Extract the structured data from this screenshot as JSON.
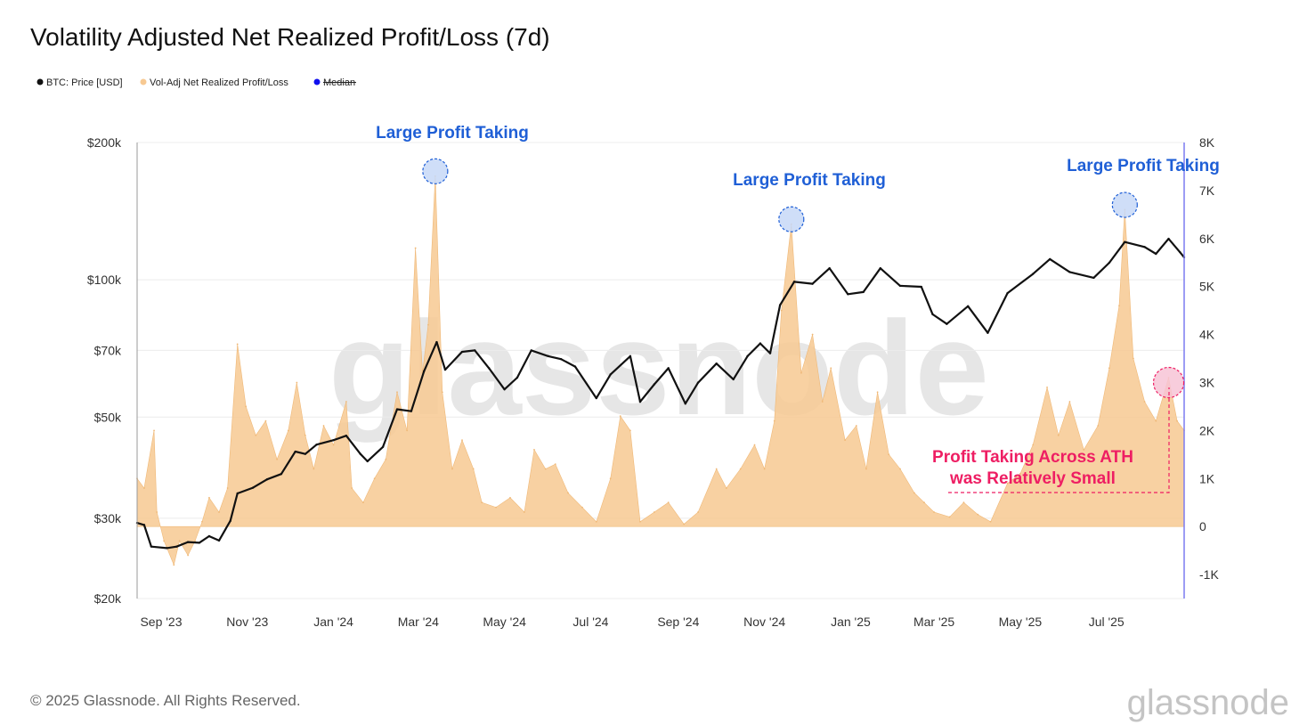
{
  "page": {
    "title": "Volatility Adjusted Net Realized Profit/Loss (7d)",
    "footer": "© 2025 Glassnode. All Rights Reserved.",
    "watermark": "glassnode",
    "footer_logo": "glassnode"
  },
  "legend": [
    {
      "label": "BTC: Price [USD]",
      "color": "#111111",
      "struck": false
    },
    {
      "label": "Vol-Adj Net Realized Profit/Loss",
      "color": "#f7c992",
      "struck": false
    },
    {
      "label": "Median",
      "color": "#1010ee",
      "struck": true
    }
  ],
  "annotations": {
    "peak_1": "Large Profit Taking",
    "peak_2": "Large Profit Taking",
    "peak_3": "Large Profit Taking",
    "ath_line1": "Profit Taking Across ATH",
    "ath_line2": "was Relatively Small"
  },
  "colors": {
    "price": "#111111",
    "pnl_fill": "#f7c992",
    "annot_blue": "#1f5fd6",
    "annot_pink": "#ee1e63",
    "right_axis": "#7b7bf0"
  },
  "chart_data": {
    "type": "area",
    "x_type": "date",
    "x_range": [
      "2023-08-15",
      "2025-08-25"
    ],
    "x_ticks": [
      {
        "date": "2023-09-01",
        "label": "Sep '23"
      },
      {
        "date": "2023-11-01",
        "label": "Nov '23"
      },
      {
        "date": "2024-01-01",
        "label": "Jan '24"
      },
      {
        "date": "2024-03-01",
        "label": "Mar '24"
      },
      {
        "date": "2024-05-01",
        "label": "May '24"
      },
      {
        "date": "2024-07-01",
        "label": "Jul '24"
      },
      {
        "date": "2024-09-01",
        "label": "Sep '24"
      },
      {
        "date": "2024-11-01",
        "label": "Nov '24"
      },
      {
        "date": "2025-01-01",
        "label": "Jan '25"
      },
      {
        "date": "2025-03-01",
        "label": "Mar '25"
      },
      {
        "date": "2025-05-01",
        "label": "May '25"
      },
      {
        "date": "2025-07-01",
        "label": "Jul '25"
      }
    ],
    "y_left": {
      "scale": "log",
      "range": [
        20000,
        200000
      ],
      "ticks": [
        {
          "value": 200000,
          "label": "$200k"
        },
        {
          "value": 100000,
          "label": "$100k"
        },
        {
          "value": 70000,
          "label": "$70k"
        },
        {
          "value": 50000,
          "label": "$50k"
        },
        {
          "value": 30000,
          "label": "$30k"
        },
        {
          "value": 20000,
          "label": "$20k"
        }
      ]
    },
    "y_right": {
      "scale": "linear",
      "range": [
        -1500,
        8000
      ],
      "ticks": [
        {
          "value": 8000,
          "label": "8K"
        },
        {
          "value": 7000,
          "label": "7K"
        },
        {
          "value": 6000,
          "label": "6K"
        },
        {
          "value": 5000,
          "label": "5K"
        },
        {
          "value": 4000,
          "label": "4K"
        },
        {
          "value": 3000,
          "label": "3K"
        },
        {
          "value": 2000,
          "label": "2K"
        },
        {
          "value": 1000,
          "label": "1K"
        },
        {
          "value": 0,
          "label": "0"
        },
        {
          "value": -1000,
          "label": "-1K"
        }
      ]
    },
    "series": [
      {
        "name": "BTC: Price [USD]",
        "axis": "left",
        "type": "line",
        "points": [
          [
            "2023-08-15",
            29300
          ],
          [
            "2023-08-20",
            29000
          ],
          [
            "2023-08-25",
            26000
          ],
          [
            "2023-09-05",
            25800
          ],
          [
            "2023-09-12",
            26000
          ],
          [
            "2023-09-20",
            26600
          ],
          [
            "2023-09-28",
            26500
          ],
          [
            "2023-10-05",
            27400
          ],
          [
            "2023-10-12",
            26800
          ],
          [
            "2023-10-20",
            29600
          ],
          [
            "2023-10-25",
            34000
          ],
          [
            "2023-11-05",
            35000
          ],
          [
            "2023-11-15",
            36500
          ],
          [
            "2023-11-25",
            37500
          ],
          [
            "2023-12-05",
            42000
          ],
          [
            "2023-12-12",
            41500
          ],
          [
            "2023-12-20",
            43500
          ],
          [
            "2024-01-01",
            44500
          ],
          [
            "2024-01-10",
            45500
          ],
          [
            "2024-01-20",
            41500
          ],
          [
            "2024-01-25",
            40000
          ],
          [
            "2024-02-05",
            43000
          ],
          [
            "2024-02-15",
            52000
          ],
          [
            "2024-02-25",
            51500
          ],
          [
            "2024-03-05",
            63000
          ],
          [
            "2024-03-14",
            73000
          ],
          [
            "2024-03-20",
            63500
          ],
          [
            "2024-04-01",
            69500
          ],
          [
            "2024-04-10",
            70000
          ],
          [
            "2024-04-20",
            64000
          ],
          [
            "2024-05-01",
            57500
          ],
          [
            "2024-05-10",
            61000
          ],
          [
            "2024-05-20",
            70000
          ],
          [
            "2024-06-01",
            68000
          ],
          [
            "2024-06-10",
            67000
          ],
          [
            "2024-06-20",
            64500
          ],
          [
            "2024-07-05",
            55000
          ],
          [
            "2024-07-15",
            62000
          ],
          [
            "2024-07-29",
            68000
          ],
          [
            "2024-08-05",
            54000
          ],
          [
            "2024-08-15",
            59000
          ],
          [
            "2024-08-25",
            64000
          ],
          [
            "2024-09-06",
            53500
          ],
          [
            "2024-09-15",
            59500
          ],
          [
            "2024-09-28",
            65500
          ],
          [
            "2024-10-10",
            60500
          ],
          [
            "2024-10-20",
            68000
          ],
          [
            "2024-10-29",
            72500
          ],
          [
            "2024-11-05",
            69000
          ],
          [
            "2024-11-12",
            88000
          ],
          [
            "2024-11-22",
            99000
          ],
          [
            "2024-12-05",
            98000
          ],
          [
            "2024-12-17",
            106000
          ],
          [
            "2024-12-30",
            93000
          ],
          [
            "2025-01-10",
            94000
          ],
          [
            "2025-01-22",
            106000
          ],
          [
            "2025-02-05",
            97000
          ],
          [
            "2025-02-20",
            96500
          ],
          [
            "2025-02-28",
            84000
          ],
          [
            "2025-03-10",
            80000
          ],
          [
            "2025-03-25",
            87500
          ],
          [
            "2025-04-08",
            76500
          ],
          [
            "2025-04-22",
            93500
          ],
          [
            "2025-05-10",
            103000
          ],
          [
            "2025-05-22",
            111000
          ],
          [
            "2025-06-05",
            104000
          ],
          [
            "2025-06-22",
            101000
          ],
          [
            "2025-07-03",
            109000
          ],
          [
            "2025-07-14",
            121000
          ],
          [
            "2025-07-28",
            118000
          ],
          [
            "2025-08-05",
            114000
          ],
          [
            "2025-08-14",
            123000
          ],
          [
            "2025-08-22",
            115000
          ],
          [
            "2025-08-25",
            112000
          ]
        ]
      },
      {
        "name": "Vol-Adj Net Realized Profit/Loss",
        "axis": "right",
        "type": "area",
        "points": [
          [
            "2023-08-15",
            1000
          ],
          [
            "2023-08-20",
            800
          ],
          [
            "2023-08-27",
            2000
          ],
          [
            "2023-08-29",
            300
          ],
          [
            "2023-09-03",
            -300
          ],
          [
            "2023-09-10",
            -800
          ],
          [
            "2023-09-14",
            -300
          ],
          [
            "2023-09-20",
            -600
          ],
          [
            "2023-09-25",
            -300
          ],
          [
            "2023-09-30",
            100
          ],
          [
            "2023-10-05",
            600
          ],
          [
            "2023-10-12",
            300
          ],
          [
            "2023-10-18",
            800
          ],
          [
            "2023-10-25",
            3800
          ],
          [
            "2023-10-31",
            2500
          ],
          [
            "2023-11-07",
            1900
          ],
          [
            "2023-11-14",
            2200
          ],
          [
            "2023-11-22",
            1400
          ],
          [
            "2023-11-30",
            2000
          ],
          [
            "2023-12-06",
            3000
          ],
          [
            "2023-12-12",
            1900
          ],
          [
            "2023-12-18",
            1200
          ],
          [
            "2023-12-25",
            2100
          ],
          [
            "2024-01-01",
            1700
          ],
          [
            "2024-01-10",
            2600
          ],
          [
            "2024-01-14",
            800
          ],
          [
            "2024-01-22",
            500
          ],
          [
            "2024-01-30",
            1000
          ],
          [
            "2024-02-07",
            1400
          ],
          [
            "2024-02-15",
            2800
          ],
          [
            "2024-02-22",
            2000
          ],
          [
            "2024-02-28",
            5800
          ],
          [
            "2024-03-04",
            3200
          ],
          [
            "2024-03-08",
            4200
          ],
          [
            "2024-03-13",
            7300
          ],
          [
            "2024-03-18",
            2800
          ],
          [
            "2024-03-25",
            1200
          ],
          [
            "2024-04-01",
            1800
          ],
          [
            "2024-04-09",
            1200
          ],
          [
            "2024-04-15",
            500
          ],
          [
            "2024-04-25",
            400
          ],
          [
            "2024-05-05",
            600
          ],
          [
            "2024-05-15",
            300
          ],
          [
            "2024-05-22",
            1600
          ],
          [
            "2024-05-30",
            1200
          ],
          [
            "2024-06-06",
            1300
          ],
          [
            "2024-06-15",
            700
          ],
          [
            "2024-06-25",
            400
          ],
          [
            "2024-07-05",
            100
          ],
          [
            "2024-07-15",
            1000
          ],
          [
            "2024-07-22",
            2300
          ],
          [
            "2024-07-29",
            2000
          ],
          [
            "2024-08-05",
            100
          ],
          [
            "2024-08-15",
            300
          ],
          [
            "2024-08-25",
            500
          ],
          [
            "2024-09-05",
            50
          ],
          [
            "2024-09-15",
            300
          ],
          [
            "2024-09-28",
            1200
          ],
          [
            "2024-10-05",
            800
          ],
          [
            "2024-10-15",
            1200
          ],
          [
            "2024-10-25",
            1700
          ],
          [
            "2024-11-01",
            1200
          ],
          [
            "2024-11-08",
            2200
          ],
          [
            "2024-11-13",
            4500
          ],
          [
            "2024-11-20",
            6300
          ],
          [
            "2024-11-27",
            3200
          ],
          [
            "2024-12-05",
            4000
          ],
          [
            "2024-12-12",
            2600
          ],
          [
            "2024-12-18",
            3300
          ],
          [
            "2024-12-28",
            1800
          ],
          [
            "2025-01-05",
            2100
          ],
          [
            "2025-01-12",
            1200
          ],
          [
            "2025-01-20",
            2800
          ],
          [
            "2025-01-28",
            1500
          ],
          [
            "2025-02-05",
            1200
          ],
          [
            "2025-02-15",
            700
          ],
          [
            "2025-02-22",
            500
          ],
          [
            "2025-03-01",
            300
          ],
          [
            "2025-03-12",
            200
          ],
          [
            "2025-03-22",
            500
          ],
          [
            "2025-04-01",
            250
          ],
          [
            "2025-04-10",
            100
          ],
          [
            "2025-04-22",
            900
          ],
          [
            "2025-05-01",
            1100
          ],
          [
            "2025-05-10",
            1700
          ],
          [
            "2025-05-20",
            2900
          ],
          [
            "2025-05-28",
            1900
          ],
          [
            "2025-06-05",
            2600
          ],
          [
            "2025-06-15",
            1600
          ],
          [
            "2025-06-25",
            2100
          ],
          [
            "2025-07-03",
            3300
          ],
          [
            "2025-07-10",
            4600
          ],
          [
            "2025-07-14",
            6600
          ],
          [
            "2025-07-20",
            3500
          ],
          [
            "2025-07-28",
            2600
          ],
          [
            "2025-08-05",
            2200
          ],
          [
            "2025-08-14",
            3100
          ],
          [
            "2025-08-20",
            2200
          ],
          [
            "2025-08-25",
            2000
          ]
        ]
      }
    ],
    "highlights": [
      {
        "date": "2024-03-13",
        "right_value": 7400,
        "color": "blue"
      },
      {
        "date": "2024-11-20",
        "right_value": 6400,
        "color": "blue"
      },
      {
        "date": "2025-07-14",
        "right_value": 6700,
        "color": "blue"
      },
      {
        "date": "2025-08-14",
        "right_value": 3000,
        "color": "pink"
      }
    ]
  }
}
